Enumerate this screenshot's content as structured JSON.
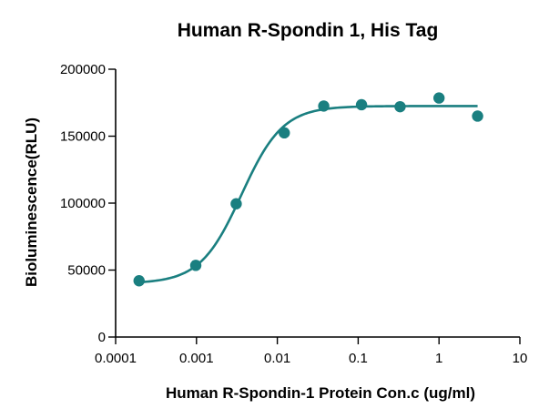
{
  "chart_data": {
    "type": "scatter",
    "title": "Human  R-Spondin 1, His Tag",
    "xlabel": "Human R-Spondin-1 Protein Con.c (ug/ml)",
    "ylabel": "Bioluminescence(RLU)",
    "x_scale": "log",
    "xlim": [
      0.0001,
      10
    ],
    "ylim": [
      0,
      200000
    ],
    "x_ticks": [
      0.0001,
      0.001,
      0.01,
      0.1,
      1,
      10
    ],
    "x_tick_labels": [
      "0.0001",
      "0.001",
      "0.01",
      "0.1",
      "1",
      "10"
    ],
    "y_ticks": [
      0,
      50000,
      100000,
      150000,
      200000
    ],
    "y_tick_labels": [
      "0",
      "50000",
      "100000",
      "150000",
      "200000"
    ],
    "grid": false,
    "color": "#1a7f80",
    "series": [
      {
        "points": [
          {
            "x": 0.000195,
            "y": 42000
          },
          {
            "x": 0.00098,
            "y": 53500
          },
          {
            "x": 0.0031,
            "y": 99500
          },
          {
            "x": 0.0122,
            "y": 152500
          },
          {
            "x": 0.0375,
            "y": 172500
          },
          {
            "x": 0.11,
            "y": 173500
          },
          {
            "x": 0.33,
            "y": 172000
          },
          {
            "x": 1.0,
            "y": 178500
          },
          {
            "x": 3.0,
            "y": 165000
          }
        ],
        "fit": {
          "model": "4PL",
          "bottom": 40000,
          "top": 172500,
          "ec50": 0.0036,
          "hill": 1.7,
          "x_range": [
            0.00019,
            3.0
          ]
        }
      }
    ]
  }
}
